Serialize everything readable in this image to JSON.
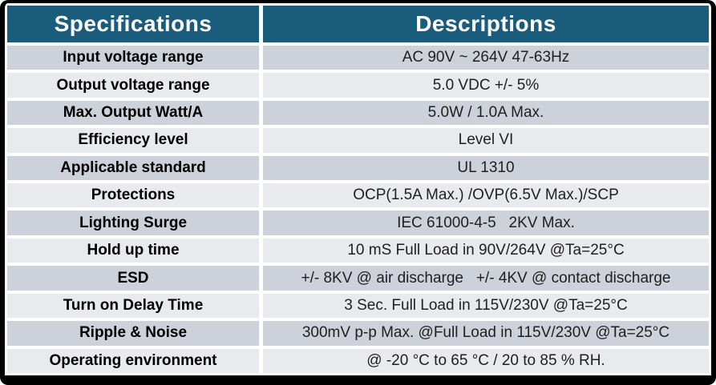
{
  "colors": {
    "header_bg": "#1A5C7C",
    "header_text": "#FFFFFF",
    "row_dark": "#CDD1D9",
    "row_light": "#E8EAEE",
    "label_text": "#000000",
    "value_text": "#1F1F1F",
    "frame": "#000000",
    "gap": "#FFFFFF"
  },
  "table": {
    "headers": [
      "Specifications",
      "Descriptions"
    ],
    "rows": [
      {
        "spec": "Input voltage range",
        "desc": "AC 90V ~ 264V 47-63Hz"
      },
      {
        "spec": "Output voltage range",
        "desc": "5.0 VDC +/- 5%"
      },
      {
        "spec": "Max. Output Watt/A",
        "desc": "5.0W / 1.0A Max."
      },
      {
        "spec": "Efficiency level",
        "desc": "Level VI"
      },
      {
        "spec": "Applicable standard",
        "desc": "UL 1310"
      },
      {
        "spec": "Protections",
        "desc": "OCP(1.5A Max.) /OVP(6.5V Max.)/SCP"
      },
      {
        "spec": "Lighting Surge",
        "desc": "IEC 61000-4-5   2KV Max."
      },
      {
        "spec": "Hold up time",
        "desc": "10 mS Full Load in 90V/264V @Ta=25°C"
      },
      {
        "spec": "ESD",
        "desc": "+/- 8KV @ air discharge   +/- 4KV @ contact discharge"
      },
      {
        "spec": "Turn on Delay Time",
        "desc": "3 Sec. Full Load in 115V/230V @Ta=25°C"
      },
      {
        "spec": "Ripple & Noise",
        "desc": "300mV p-p Max. @Full Load in 115V/230V @Ta=25°C"
      },
      {
        "spec": "Operating environment",
        "desc": "@ -20 °C to 65 °C / 20 to 85 % RH."
      }
    ]
  }
}
